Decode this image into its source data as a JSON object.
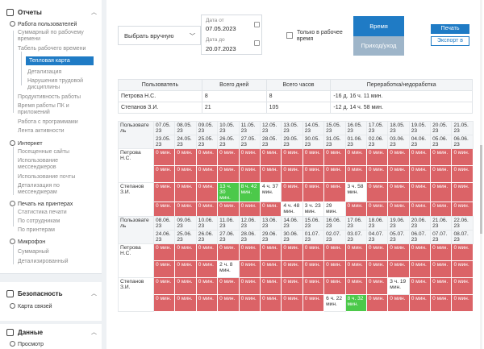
{
  "sidebar": {
    "reports_title": "Отчеты",
    "items": [
      {
        "label": "Работа пользователей",
        "dark": true
      },
      {
        "label": "Суммарный по рабочему времени"
      },
      {
        "label": "Табель рабочего времени"
      },
      {
        "label": "Тепловая карта",
        "active": true
      },
      {
        "label": "Детализация"
      },
      {
        "label": "Нарушения трудовой дисциплины"
      },
      {
        "label": "Продуктивность работы"
      },
      {
        "label": "Время работы ПК и приложений"
      },
      {
        "label": "Работа с программами"
      },
      {
        "label": "Лента активности"
      },
      {
        "label": "Интернет",
        "dark": true
      },
      {
        "label": "Посещенные сайты"
      },
      {
        "label": "Использование мессенджеров"
      },
      {
        "label": "Использование почты"
      },
      {
        "label": "Детализация по мессенджерам"
      },
      {
        "label": "Печать на принтерах",
        "dark": true
      },
      {
        "label": "Статистика печати"
      },
      {
        "label": "По сотрудникам"
      },
      {
        "label": "По принтерам"
      },
      {
        "label": "Микрофон",
        "dark": true
      },
      {
        "label": "Суммарный"
      },
      {
        "label": "Детализированный"
      }
    ],
    "security_title": "Безопасность",
    "security_items": [
      "Карта связей"
    ],
    "data_title": "Данные",
    "data_items": [
      "Просмотр"
    ]
  },
  "filters": {
    "mode": "Выбрать вручную",
    "date_from_label": "Дата от",
    "date_from": "07.05.2023",
    "date_to_label": "Дата до",
    "date_to": "20.07.2023",
    "work_time_only": "Только в рабочее время",
    "btn_time": "Время",
    "btn_pass": "Приход/уход",
    "btn_print": "Печать",
    "btn_export": "Экспорт в"
  },
  "summary": {
    "headers": [
      "Пользователь",
      "Всего дней",
      "Всего часов",
      "Переработка/недоработка"
    ],
    "rows": [
      [
        "Петрова Н.С.",
        "8",
        "8",
        "-16 д. 16 ч. 11 мин."
      ],
      [
        "Степанов З.И.",
        "21",
        "105",
        "-12 д. 14 ч. 58 мин."
      ]
    ]
  },
  "heatmap1": {
    "user_col": "Пользовате ль",
    "weeks": [
      [
        "07.05.",
        "08.05.",
        "09.05.",
        "10.05.",
        "11.05.",
        "12.05.",
        "13.05.",
        "14.05.",
        "15.05.",
        "16.05.",
        "17.05.",
        "18.05.",
        "19.05.",
        "20.05.",
        "21.05."
      ],
      [
        "23.05.",
        "24.05.",
        "25.05.",
        "26.05.",
        "27.05.",
        "28.05.",
        "29.05.",
        "30.05.",
        "31.05.",
        "01.06.",
        "02.06.",
        "03.06.",
        "04.06.",
        "05.06.",
        "06.06."
      ]
    ],
    "year": "23",
    "users": [
      {
        "name": "Петрова Н.С.",
        "rows": [
          [
            "0 мин.",
            "0 мин.",
            "0 мин.",
            "0 мин.",
            "0 мин.",
            "0 мин.",
            "0 мин.",
            "0 мин.",
            "0 мин.",
            "0 мин.",
            "0 мин.",
            "0 мин.",
            "0 мин.",
            "0 мин.",
            "0 мин."
          ],
          [
            "0 мин.",
            "0 мин.",
            "0 мин.",
            "0 мин.",
            "0 мин.",
            "0 мин.",
            "0 мин.",
            "0 мин.",
            "0 мин.",
            "0 мин.",
            "0 мин.",
            "0 мин.",
            "0 мин.",
            "0 мин.",
            "0 мин."
          ]
        ]
      },
      {
        "name": "Степанов З.И.",
        "rows": [
          [
            "0 мин.",
            "0 мин.",
            "0 мин.",
            "13 ч. 30 мин.",
            "8 ч. 42 мин.",
            "4 ч. 37 мин.",
            "0 мин.",
            "0 мин.",
            "0 мин.",
            "3 ч. 58 мин.",
            "0 мин.",
            "0 мин.",
            "0 мин.",
            "0 мин.",
            "0 мин."
          ],
          [
            "0 мин.",
            "0 мин.",
            "0 мин.",
            "0 мин.",
            "0 мин.",
            "0 мин.",
            "4 ч. 48 мин.",
            "3 ч. 23 мин.",
            "29 мин.",
            "0 мин.",
            "0 мин.",
            "0 мин.",
            "0 мин.",
            "0 мин.",
            "0 мин."
          ]
        ]
      }
    ]
  },
  "heatmap2": {
    "user_col": "Пользовате ль",
    "weeks": [
      [
        "08.06.",
        "09.06.",
        "10.06.",
        "11.06.",
        "12.06.",
        "13.06.",
        "14.06.",
        "15.06.",
        "16.06.",
        "17.06.",
        "18.06.",
        "19.06.",
        "20.06.",
        "21.06.",
        "22.06."
      ],
      [
        "24.06.",
        "25.06.",
        "26.06.",
        "27.06.",
        "28.06.",
        "29.06.",
        "30.06.",
        "01.07.",
        "02.07.",
        "03.07.",
        "04.07.",
        "05.07.",
        "06.07.",
        "07.07.",
        "08.07."
      ]
    ],
    "year": "23",
    "users": [
      {
        "name": "Петрова Н.С.",
        "rows": [
          [
            "0 мин.",
            "0 мин.",
            "0 мин.",
            "0 мин.",
            "0 мин.",
            "0 мин.",
            "0 мин.",
            "0 мин.",
            "0 мин.",
            "0 мин.",
            "0 мин.",
            "0 мин.",
            "0 мин.",
            "0 мин.",
            "0 мин."
          ],
          [
            "0 мин.",
            "0 мин.",
            "0 мин.",
            "2 ч. 8 мин.",
            "0 мин.",
            "0 мин.",
            "0 мин.",
            "0 мин.",
            "0 мин.",
            "0 мин.",
            "0 мин.",
            "0 мин.",
            "0 мин.",
            "0 мин.",
            "0 мин."
          ]
        ]
      },
      {
        "name": "Степанов З.И.",
        "rows": [
          [
            "0 мин.",
            "0 мин.",
            "0 мин.",
            "0 мин.",
            "0 мин.",
            "0 мин.",
            "0 мин.",
            "0 мин.",
            "0 мин.",
            "0 мин.",
            "0 мин.",
            "3 ч. 19 мин.",
            "0 мин.",
            "0 мин.",
            "0 мин."
          ],
          [
            "0 мин.",
            "0 мин.",
            "0 мин.",
            "0 мин.",
            "0 мин.",
            "0 мин.",
            "0 мин.",
            "0 мин.",
            "6 ч. 22 мин.",
            "8 ч. 32 мин.",
            "0 мин.",
            "0 мин.",
            "0 мин.",
            "0 мин.",
            "0 мин."
          ]
        ]
      }
    ]
  },
  "colors": {
    "accent": "#1f7bc5",
    "red": "#db6367",
    "green": "#4cc94a"
  }
}
